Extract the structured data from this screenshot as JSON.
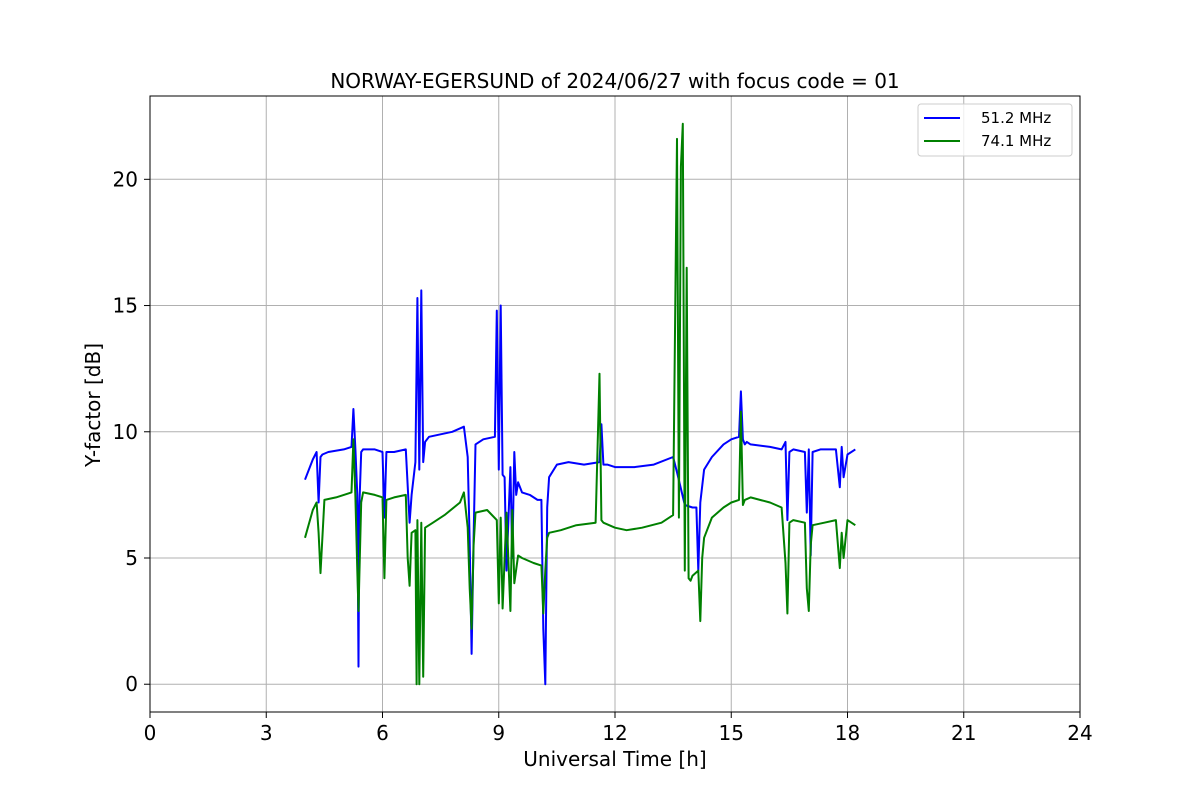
{
  "chart_data": {
    "type": "line",
    "title": "NORWAY-EGERSUND of 2024/06/27 with focus code = 01",
    "xlabel": "Universal Time [h]",
    "ylabel": "Y-factor [dB]",
    "xlim": [
      0,
      24
    ],
    "ylim": [
      -1.1,
      23.3
    ],
    "xticks": [
      0,
      3,
      6,
      9,
      12,
      15,
      18,
      21,
      24
    ],
    "yticks": [
      0,
      5,
      10,
      15,
      20
    ],
    "grid": true,
    "legend_position": "top-right",
    "series": [
      {
        "name": "51.2 MHz",
        "color": "#0000ff",
        "x": [
          4.0,
          4.2,
          4.3,
          4.35,
          4.4,
          4.45,
          4.6,
          5.0,
          5.2,
          5.25,
          5.3,
          5.35,
          5.38,
          5.4,
          5.45,
          5.5,
          5.8,
          6.0,
          6.05,
          6.1,
          6.3,
          6.6,
          6.7,
          6.75,
          6.85,
          6.9,
          6.95,
          7.0,
          7.05,
          7.1,
          7.2,
          7.5,
          7.8,
          8.1,
          8.2,
          8.25,
          8.3,
          8.35,
          8.4,
          8.6,
          8.9,
          8.95,
          9.0,
          9.05,
          9.1,
          9.15,
          9.2,
          9.3,
          9.35,
          9.4,
          9.45,
          9.5,
          9.6,
          9.8,
          10.0,
          10.1,
          10.15,
          10.2,
          10.25,
          10.3,
          10.5,
          10.8,
          11.2,
          11.6,
          11.65,
          11.7,
          11.8,
          12.0,
          12.5,
          13.0,
          13.5,
          13.6,
          13.8,
          14.0,
          14.1,
          14.15,
          14.2,
          14.3,
          14.5,
          14.8,
          15.0,
          15.2,
          15.25,
          15.3,
          15.35,
          15.4,
          15.5,
          16.0,
          16.3,
          16.4,
          16.45,
          16.5,
          16.6,
          16.9,
          16.95,
          17.0,
          17.05,
          17.1,
          17.3,
          17.7,
          17.8,
          17.85,
          17.9,
          18.0,
          18.2
        ],
        "y": [
          8.1,
          8.9,
          9.2,
          7.2,
          9.0,
          9.1,
          9.2,
          9.3,
          9.4,
          10.9,
          9.3,
          7.5,
          0.7,
          7.0,
          9.2,
          9.3,
          9.3,
          9.2,
          6.6,
          9.2,
          9.2,
          9.3,
          6.4,
          7.5,
          8.8,
          15.3,
          8.5,
          15.6,
          8.8,
          9.6,
          9.8,
          9.9,
          10.0,
          10.2,
          9.0,
          5.6,
          1.2,
          5.8,
          9.5,
          9.7,
          9.8,
          14.8,
          8.5,
          15.0,
          8.3,
          8.2,
          4.5,
          8.6,
          5.0,
          9.2,
          7.5,
          8.0,
          7.6,
          7.5,
          7.3,
          7.3,
          2.2,
          0.0,
          7.0,
          8.2,
          8.7,
          8.8,
          8.7,
          8.8,
          10.3,
          8.7,
          8.7,
          8.6,
          8.6,
          8.7,
          9.0,
          8.4,
          7.1,
          7.0,
          7.0,
          4.5,
          7.2,
          8.5,
          9.0,
          9.5,
          9.7,
          9.8,
          11.6,
          9.7,
          9.5,
          9.6,
          9.5,
          9.4,
          9.3,
          9.6,
          6.5,
          9.2,
          9.3,
          9.2,
          6.8,
          9.3,
          5.1,
          9.2,
          9.3,
          9.3,
          7.8,
          9.4,
          8.2,
          9.1,
          9.3
        ]
      },
      {
        "name": "74.1 MHz",
        "color": "#008000",
        "x": [
          4.0,
          4.2,
          4.3,
          4.35,
          4.4,
          4.5,
          4.8,
          5.0,
          5.2,
          5.25,
          5.3,
          5.35,
          5.38,
          5.4,
          5.45,
          5.5,
          5.8,
          6.0,
          6.05,
          6.1,
          6.3,
          6.6,
          6.65,
          6.7,
          6.75,
          6.85,
          6.88,
          6.9,
          6.95,
          7.0,
          7.05,
          7.1,
          7.3,
          7.6,
          8.0,
          8.1,
          8.2,
          8.25,
          8.3,
          8.35,
          8.4,
          8.7,
          8.95,
          9.0,
          9.05,
          9.1,
          9.2,
          9.3,
          9.35,
          9.4,
          9.5,
          9.6,
          9.9,
          10.1,
          10.15,
          10.2,
          10.25,
          10.3,
          10.6,
          11.0,
          11.5,
          11.6,
          11.65,
          11.7,
          12.0,
          12.3,
          12.7,
          13.2,
          13.5,
          13.6,
          13.65,
          13.7,
          13.75,
          13.8,
          13.85,
          13.9,
          13.95,
          14.0,
          14.15,
          14.2,
          14.25,
          14.3,
          14.5,
          14.8,
          15.0,
          15.2,
          15.25,
          15.3,
          15.35,
          15.5,
          16.0,
          16.3,
          16.4,
          16.45,
          16.5,
          16.6,
          16.9,
          16.95,
          17.0,
          17.05,
          17.1,
          17.4,
          17.7,
          17.8,
          17.85,
          17.9,
          18.0,
          18.2
        ],
        "y": [
          5.8,
          6.9,
          7.2,
          6.0,
          4.4,
          7.3,
          7.4,
          7.5,
          7.6,
          9.7,
          7.4,
          4.5,
          2.9,
          4.2,
          7.2,
          7.6,
          7.5,
          7.4,
          4.2,
          7.3,
          7.4,
          7.5,
          5.0,
          3.9,
          6.0,
          6.1,
          0.0,
          6.5,
          0.0,
          6.4,
          0.3,
          6.2,
          6.4,
          6.7,
          7.2,
          7.6,
          6.2,
          3.8,
          2.2,
          5.5,
          6.8,
          6.9,
          6.5,
          3.2,
          6.6,
          3.0,
          6.8,
          2.9,
          6.9,
          4.0,
          5.1,
          5.0,
          4.8,
          4.7,
          2.8,
          4.5,
          5.8,
          6.0,
          6.1,
          6.3,
          6.4,
          12.3,
          6.5,
          6.4,
          6.2,
          6.1,
          6.2,
          6.4,
          6.7,
          21.6,
          6.6,
          20.5,
          22.2,
          4.5,
          16.5,
          4.2,
          4.1,
          4.3,
          4.5,
          2.5,
          5.0,
          5.8,
          6.6,
          7.0,
          7.2,
          7.3,
          10.8,
          7.1,
          7.3,
          7.4,
          7.2,
          7.0,
          4.8,
          2.8,
          6.4,
          6.5,
          6.4,
          3.8,
          2.9,
          5.5,
          6.3,
          6.4,
          6.5,
          4.6,
          6.0,
          5.0,
          6.5,
          6.3
        ]
      }
    ]
  }
}
